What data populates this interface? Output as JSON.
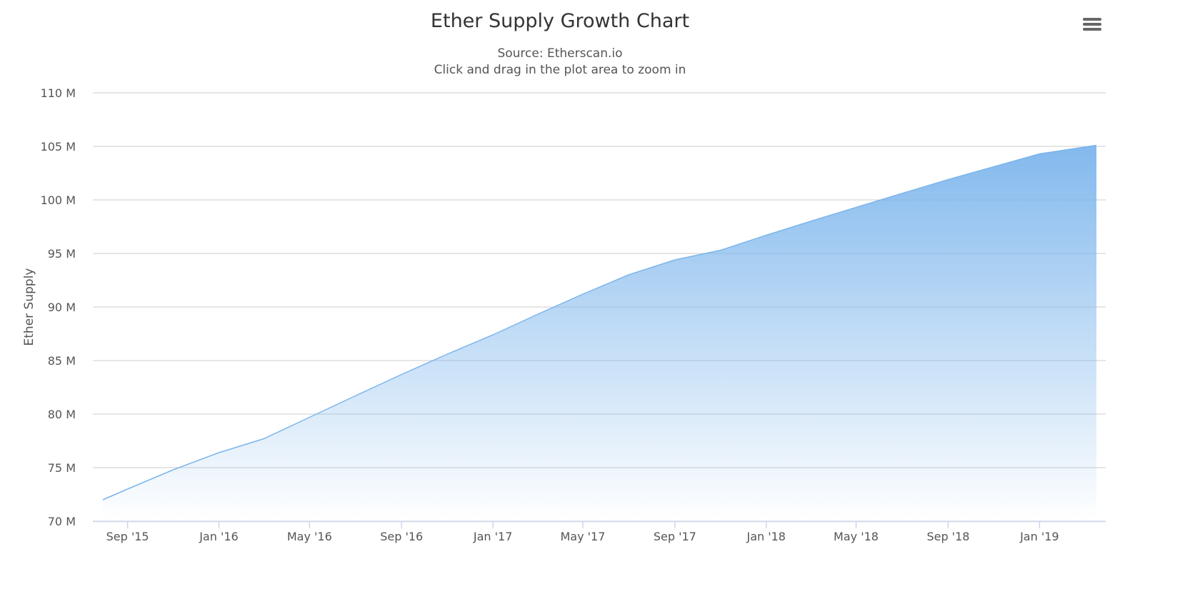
{
  "chart_data": {
    "type": "area",
    "title": "Ether Supply Growth Chart",
    "subtitle": [
      "Source: Etherscan.io",
      "Click and drag in the plot area to zoom in"
    ],
    "xlabel": "",
    "ylabel": "Ether Supply",
    "xlim": [
      "2015-07-30",
      "2019-03-18"
    ],
    "ylim": [
      70000000,
      110000000
    ],
    "y_ticks": [
      {
        "value": 70000000,
        "label": "70 M"
      },
      {
        "value": 75000000,
        "label": "75 M"
      },
      {
        "value": 80000000,
        "label": "80 M"
      },
      {
        "value": 85000000,
        "label": "85 M"
      },
      {
        "value": 90000000,
        "label": "90 M"
      },
      {
        "value": 95000000,
        "label": "95 M"
      },
      {
        "value": 100000000,
        "label": "100 M"
      },
      {
        "value": 105000000,
        "label": "105 M"
      },
      {
        "value": 110000000,
        "label": "110 M"
      }
    ],
    "x_ticks": [
      {
        "date": "2015-09-01",
        "label": "Sep '15"
      },
      {
        "date": "2016-01-01",
        "label": "Jan '16"
      },
      {
        "date": "2016-05-01",
        "label": "May '16"
      },
      {
        "date": "2016-09-01",
        "label": "Sep '16"
      },
      {
        "date": "2017-01-01",
        "label": "Jan '17"
      },
      {
        "date": "2017-05-01",
        "label": "May '17"
      },
      {
        "date": "2017-09-01",
        "label": "Sep '17"
      },
      {
        "date": "2018-01-01",
        "label": "Jan '18"
      },
      {
        "date": "2018-05-01",
        "label": "May '18"
      },
      {
        "date": "2018-09-01",
        "label": "Sep '18"
      },
      {
        "date": "2019-01-01",
        "label": "Jan '19"
      }
    ],
    "grid": true,
    "legend": "none",
    "series": [
      {
        "color": "#7cb5ec",
        "points": [
          {
            "x": "2015-07-30",
            "y": 72000000
          },
          {
            "x": "2015-09-01",
            "y": 73000000
          },
          {
            "x": "2015-11-01",
            "y": 74800000
          },
          {
            "x": "2016-01-01",
            "y": 76400000
          },
          {
            "x": "2016-03-01",
            "y": 77700000
          },
          {
            "x": "2016-05-01",
            "y": 79700000
          },
          {
            "x": "2016-07-01",
            "y": 81700000
          },
          {
            "x": "2016-09-01",
            "y": 83700000
          },
          {
            "x": "2016-11-01",
            "y": 85600000
          },
          {
            "x": "2017-01-01",
            "y": 87400000
          },
          {
            "x": "2017-03-01",
            "y": 89300000
          },
          {
            "x": "2017-05-01",
            "y": 91200000
          },
          {
            "x": "2017-07-01",
            "y": 93000000
          },
          {
            "x": "2017-09-01",
            "y": 94400000
          },
          {
            "x": "2017-11-01",
            "y": 95300000
          },
          {
            "x": "2018-01-01",
            "y": 96700000
          },
          {
            "x": "2018-03-01",
            "y": 98000000
          },
          {
            "x": "2018-05-01",
            "y": 99300000
          },
          {
            "x": "2018-07-01",
            "y": 100600000
          },
          {
            "x": "2018-09-01",
            "y": 101900000
          },
          {
            "x": "2018-11-01",
            "y": 103100000
          },
          {
            "x": "2019-01-01",
            "y": 104300000
          },
          {
            "x": "2019-03-18",
            "y": 105100000
          }
        ]
      }
    ]
  }
}
